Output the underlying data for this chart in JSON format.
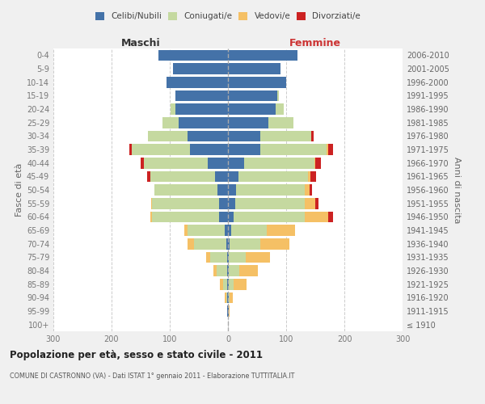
{
  "age_groups": [
    "100+",
    "95-99",
    "90-94",
    "85-89",
    "80-84",
    "75-79",
    "70-74",
    "65-69",
    "60-64",
    "55-59",
    "50-54",
    "45-49",
    "40-44",
    "35-39",
    "30-34",
    "25-29",
    "20-24",
    "15-19",
    "10-14",
    "5-9",
    "0-4"
  ],
  "birth_years": [
    "≤ 1910",
    "1911-1915",
    "1916-1920",
    "1921-1925",
    "1926-1930",
    "1931-1935",
    "1936-1940",
    "1941-1945",
    "1946-1950",
    "1951-1955",
    "1956-1960",
    "1961-1965",
    "1966-1970",
    "1971-1975",
    "1976-1980",
    "1981-1985",
    "1986-1990",
    "1991-1995",
    "1996-2000",
    "2001-2005",
    "2006-2010"
  ],
  "males_celibi": [
    0,
    1,
    1,
    1,
    2,
    2,
    3,
    5,
    15,
    15,
    18,
    22,
    35,
    65,
    70,
    85,
    90,
    90,
    105,
    95,
    120
  ],
  "males_coniugati": [
    0,
    0,
    2,
    8,
    18,
    28,
    55,
    65,
    115,
    115,
    108,
    112,
    110,
    100,
    68,
    28,
    8,
    0,
    0,
    0,
    0
  ],
  "males_vedovi": [
    0,
    1,
    2,
    5,
    5,
    8,
    12,
    5,
    4,
    2,
    0,
    0,
    0,
    0,
    0,
    0,
    0,
    0,
    0,
    0,
    0
  ],
  "males_divorziati": [
    0,
    0,
    0,
    0,
    0,
    0,
    0,
    0,
    0,
    0,
    0,
    5,
    5,
    5,
    0,
    0,
    0,
    0,
    0,
    0,
    0
  ],
  "females_nubili": [
    0,
    1,
    1,
    2,
    2,
    2,
    3,
    5,
    10,
    12,
    14,
    18,
    28,
    55,
    55,
    70,
    82,
    85,
    100,
    90,
    120
  ],
  "females_coniugate": [
    0,
    0,
    2,
    8,
    18,
    28,
    52,
    62,
    122,
    120,
    118,
    120,
    120,
    115,
    88,
    42,
    14,
    2,
    0,
    0,
    0
  ],
  "females_vedove": [
    0,
    2,
    6,
    22,
    32,
    42,
    50,
    48,
    40,
    18,
    8,
    4,
    2,
    2,
    0,
    0,
    0,
    0,
    0,
    0,
    0
  ],
  "females_divorziate": [
    0,
    0,
    0,
    0,
    0,
    0,
    0,
    0,
    8,
    5,
    5,
    10,
    10,
    8,
    4,
    0,
    0,
    0,
    0,
    0,
    0
  ],
  "color_celibi": "#4472a8",
  "color_coniugati": "#c5d9a0",
  "color_vedovi": "#f5c065",
  "color_divorziati": "#cc2222",
  "title": "Popolazione per età, sesso e stato civile - 2011",
  "subtitle": "COMUNE DI CASTRONNO (VA) - Dati ISTAT 1° gennaio 2011 - Elaborazione TUTTITALIA.IT",
  "label_maschi": "Maschi",
  "label_femmine": "Femmine",
  "label_fasce": "Fasce di età",
  "label_anni": "Anni di nascita",
  "legend_labels": [
    "Celibi/Nubili",
    "Coniugati/e",
    "Vedovi/e",
    "Divorziati/e"
  ],
  "xlim": 300,
  "bg_color": "#f0f0f0",
  "plot_bg": "#ffffff"
}
